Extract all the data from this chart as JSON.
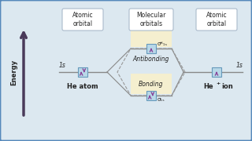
{
  "bg_color": "#dce8f0",
  "border_color": "#5588bb",
  "title_box_color": "#ffffff",
  "orbital_box_color": "#b8d8e8",
  "antibonding_fill": "#f5efcf",
  "bonding_fill": "#f5efcf",
  "arrow_color": "#4a3a5a",
  "line_color": "#888888",
  "hex_line_color": "#888888",
  "text_dark": "#222222",
  "energy_label": "Energy",
  "left_label": "He atom",
  "antibonding_label": "Antibonding",
  "bonding_label": "Bonding",
  "sigma_star": "σ*₁ₛ",
  "sigma": "σ₁ₛ",
  "one_s": "1s"
}
